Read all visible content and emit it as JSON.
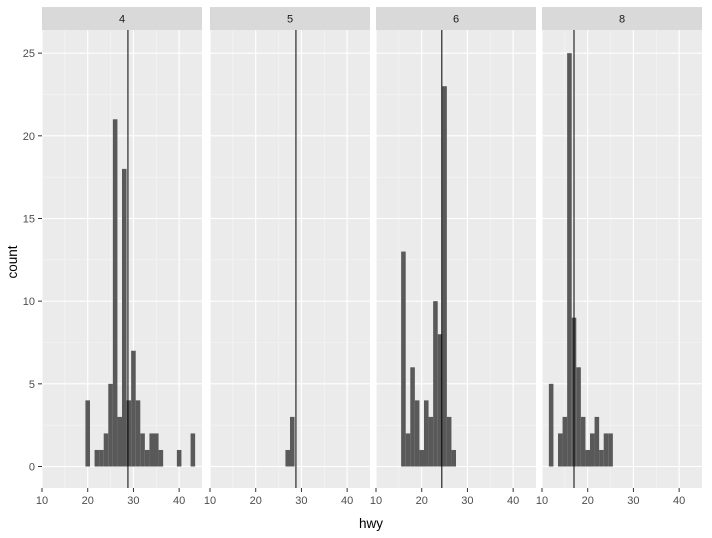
{
  "chart_data": {
    "type": "histogram",
    "xlabel": "hwy",
    "ylabel": "count",
    "xlim": [
      10,
      45
    ],
    "ylim": [
      -1.3,
      26.4
    ],
    "x_ticks": [
      10,
      20,
      30,
      40
    ],
    "y_ticks": [
      0,
      5,
      10,
      15,
      20,
      25
    ],
    "grid": true,
    "legend": "none",
    "bin_width": 1,
    "colors": {
      "bar": "#595959",
      "panel_background": "#ebebeb",
      "strip_background": "#d9d9d9",
      "grid_major": "#ffffff",
      "grid_minor": "#f5f5f5",
      "vline": "#000000"
    },
    "facets": [
      {
        "label": "4",
        "vline": 28.8,
        "bins": [
          {
            "x": 20,
            "count": 4
          },
          {
            "x": 21,
            "count": 0
          },
          {
            "x": 22,
            "count": 1
          },
          {
            "x": 23,
            "count": 1
          },
          {
            "x": 24,
            "count": 2
          },
          {
            "x": 25,
            "count": 5
          },
          {
            "x": 26,
            "count": 21
          },
          {
            "x": 27,
            "count": 3
          },
          {
            "x": 28,
            "count": 18
          },
          {
            "x": 29,
            "count": 4
          },
          {
            "x": 30,
            "count": 7
          },
          {
            "x": 31,
            "count": 4
          },
          {
            "x": 32,
            "count": 2
          },
          {
            "x": 33,
            "count": 1
          },
          {
            "x": 34,
            "count": 2
          },
          {
            "x": 35,
            "count": 2
          },
          {
            "x": 36,
            "count": 1
          },
          {
            "x": 37,
            "count": 0
          },
          {
            "x": 38,
            "count": 0
          },
          {
            "x": 39,
            "count": 0
          },
          {
            "x": 40,
            "count": 1
          },
          {
            "x": 41,
            "count": 0
          },
          {
            "x": 42,
            "count": 0
          },
          {
            "x": 43,
            "count": 2
          }
        ]
      },
      {
        "label": "5",
        "vline": 28.8,
        "bins": [
          {
            "x": 27,
            "count": 1
          },
          {
            "x": 28,
            "count": 3
          }
        ]
      },
      {
        "label": "6",
        "vline": 24.4,
        "bins": [
          {
            "x": 16,
            "count": 13
          },
          {
            "x": 17,
            "count": 2
          },
          {
            "x": 18,
            "count": 6
          },
          {
            "x": 19,
            "count": 4
          },
          {
            "x": 20,
            "count": 1
          },
          {
            "x": 21,
            "count": 4
          },
          {
            "x": 22,
            "count": 3
          },
          {
            "x": 23,
            "count": 10
          },
          {
            "x": 24,
            "count": 8
          },
          {
            "x": 25,
            "count": 23
          },
          {
            "x": 26,
            "count": 3
          },
          {
            "x": 27,
            "count": 1
          }
        ]
      },
      {
        "label": "8",
        "vline": 17.0,
        "bins": [
          {
            "x": 12,
            "count": 5
          },
          {
            "x": 13,
            "count": 0
          },
          {
            "x": 14,
            "count": 2
          },
          {
            "x": 15,
            "count": 3
          },
          {
            "x": 16,
            "count": 25
          },
          {
            "x": 17,
            "count": 9
          },
          {
            "x": 18,
            "count": 6
          },
          {
            "x": 19,
            "count": 3
          },
          {
            "x": 20,
            "count": 1
          },
          {
            "x": 21,
            "count": 2
          },
          {
            "x": 22,
            "count": 3
          },
          {
            "x": 23,
            "count": 1
          },
          {
            "x": 24,
            "count": 2
          },
          {
            "x": 25,
            "count": 2
          }
        ]
      }
    ]
  }
}
